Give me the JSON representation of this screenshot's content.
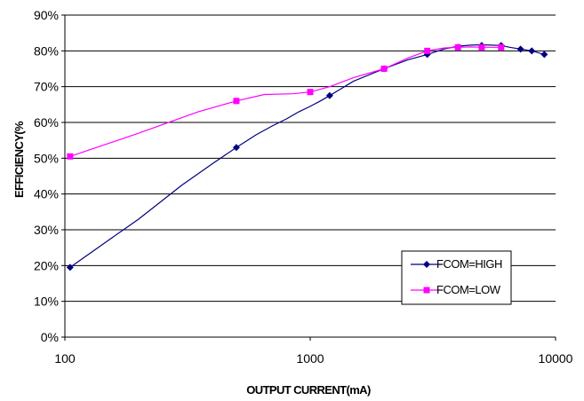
{
  "chart_data": {
    "type": "line",
    "title": "",
    "xlabel": "OUTPUT CURRENT(mA)",
    "ylabel": "EFFICIENCY(%",
    "x_scale": "log",
    "xlim": [
      100,
      10000
    ],
    "ylim": [
      0,
      90
    ],
    "x_ticks": [
      "100",
      "1000",
      "10000"
    ],
    "y_ticks": [
      "0%",
      "10%",
      "20%",
      "30%",
      "40%",
      "50%",
      "60%",
      "70%",
      "80%",
      "90%"
    ],
    "grid": "horizontal",
    "legend_position": "bottom-right",
    "series": [
      {
        "name": "FCOM=HIGH",
        "color": "#000080",
        "marker": "diamond",
        "x": [
          105,
          500,
          1200,
          2000,
          3000,
          4000,
          5000,
          6000,
          7200,
          8000,
          9000
        ],
        "y": [
          19.5,
          53,
          67.5,
          75,
          79,
          81,
          81.5,
          81.5,
          80.5,
          80,
          79
        ],
        "curve_x": [
          105,
          150,
          200,
          300,
          400,
          500,
          600,
          700,
          800,
          900,
          1000,
          1100,
          1200,
          1500,
          2000,
          2500,
          3000,
          3500,
          4000,
          4500,
          5000,
          5500,
          6000,
          6500,
          7200,
          8000,
          9000
        ],
        "curve_y": [
          19.5,
          27,
          33,
          42.5,
          48.5,
          53,
          56.5,
          59,
          61,
          63,
          64.5,
          66,
          67.5,
          71.5,
          75,
          77.5,
          79,
          80.5,
          81.3,
          81.6,
          81.7,
          81.6,
          81.5,
          81,
          80.5,
          80,
          79
        ]
      },
      {
        "name": "FCOM=LOW",
        "color": "#FF00FF",
        "marker": "square",
        "x": [
          105,
          500,
          1000,
          2000,
          3000,
          4000,
          5000,
          6000
        ],
        "y": [
          50.5,
          66,
          68.5,
          75,
          80,
          81,
          81,
          81
        ],
        "curve_x": [
          105,
          200,
          350,
          500,
          650,
          850,
          1000,
          1200,
          1500,
          2000,
          2500,
          3000,
          3500,
          4000,
          4500,
          5000,
          5500,
          6000
        ],
        "curve_y": [
          50.5,
          57,
          63,
          66,
          67.8,
          68,
          68.5,
          70,
          72.5,
          75,
          78,
          80,
          80.8,
          81,
          81.1,
          81,
          81,
          81
        ]
      }
    ]
  }
}
